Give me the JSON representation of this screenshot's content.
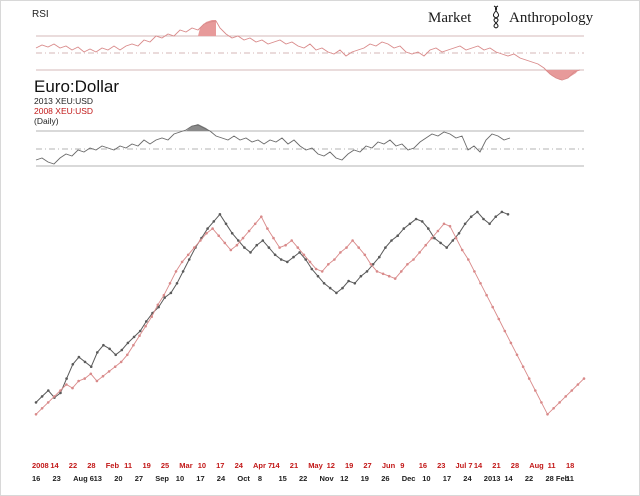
{
  "header": {
    "rsi_label": "RSI",
    "logo_left": "Market",
    "logo_right": "Anthropology"
  },
  "legend": {
    "title": "Euro:Dollar",
    "line1": "2013 XEU:USD",
    "line2": "2008 XEU:USD",
    "line3": "(Daily)"
  },
  "colors": {
    "series_2013": "#5a5a5a",
    "series_2008": "#d98a8a",
    "rsi_fill_top": "#e79a9a",
    "rsi_fill_bottom": "#8a8a8a",
    "axis_red": "#c21818"
  },
  "chart_data": [
    {
      "type": "line",
      "title": "",
      "xlabel": "",
      "ylabel": "",
      "series": [
        {
          "name": "2013 XEU:USD",
          "values": [
            40,
            45,
            50,
            44,
            48,
            60,
            72,
            78,
            74,
            70,
            82,
            88,
            85,
            80,
            84,
            90,
            95,
            100,
            108,
            115,
            120,
            128,
            132,
            140,
            150,
            160,
            170,
            178,
            186,
            192,
            198,
            190,
            182,
            176,
            170,
            166,
            172,
            176,
            170,
            164,
            160,
            158,
            162,
            166,
            160,
            152,
            146,
            140,
            136,
            132,
            136,
            142,
            140,
            146,
            150,
            156,
            162,
            170,
            176,
            180,
            186,
            190,
            194,
            192,
            186,
            178,
            174,
            170,
            176,
            182,
            190,
            196,
            200,
            194,
            190,
            196,
            200,
            198
          ]
        },
        {
          "name": "2008 XEU:USD",
          "values": [
            30,
            35,
            40,
            45,
            50,
            55,
            52,
            58,
            60,
            64,
            58,
            62,
            66,
            70,
            74,
            80,
            88,
            96,
            104,
            112,
            122,
            130,
            140,
            150,
            158,
            164,
            170,
            176,
            182,
            186,
            180,
            174,
            168,
            172,
            178,
            184,
            190,
            196,
            186,
            178,
            170,
            172,
            176,
            170,
            164,
            158,
            152,
            150,
            156,
            160,
            166,
            170,
            176,
            170,
            164,
            156,
            150,
            148,
            146,
            144,
            150,
            156,
            160,
            166,
            172,
            178,
            184,
            190,
            188,
            178,
            168,
            160,
            150,
            140,
            130,
            120,
            110,
            100,
            90,
            80,
            70,
            60,
            50,
            40,
            30,
            35,
            40,
            45,
            50,
            55,
            60
          ]
        }
      ],
      "x_tick_labels_red": [
        "2008",
        "14",
        "22",
        "28",
        "Feb",
        "11",
        "19",
        "25",
        "Mar",
        "10",
        "17",
        "24",
        "Apr 7",
        "14",
        "21",
        "May",
        "12",
        "19",
        "27",
        "Jun",
        "9",
        "16",
        "23",
        "Jul 7",
        "14",
        "21",
        "28",
        "Aug",
        "11",
        "18"
      ],
      "x_tick_labels_black": [
        "16",
        "23",
        "Aug 6",
        "13",
        "20",
        "27",
        "Sep",
        "10",
        "17",
        "24",
        "Oct",
        "8",
        "15",
        "22",
        "Nov",
        "12",
        "19",
        "26",
        "Dec",
        "10",
        "17",
        "24",
        "2013",
        "14",
        "22",
        "28 Feb",
        "11"
      ],
      "grid": false
    }
  ]
}
